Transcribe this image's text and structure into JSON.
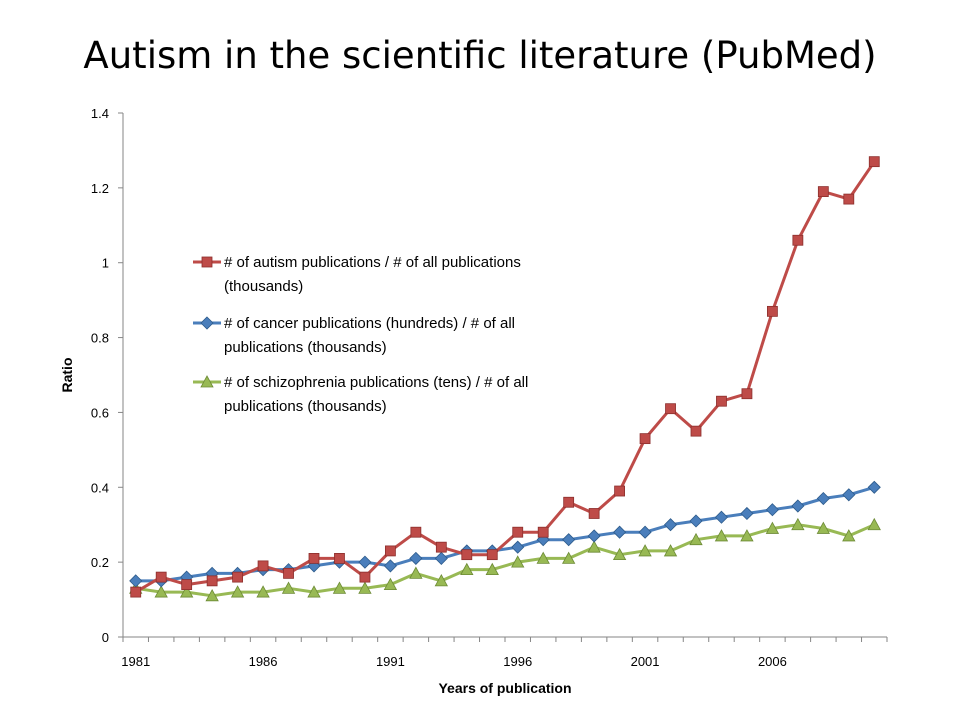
{
  "title": "Autism in the scientific literature (PubMed)",
  "chart_data": {
    "type": "line",
    "title": "Autism in the scientific literature (PubMed)",
    "xlabel": "Years of publication",
    "ylabel": "Ratio",
    "ylim": [
      0,
      1.4
    ],
    "yticks": [
      "0",
      "0.2",
      "0.4",
      "0.6",
      "0.8",
      "1",
      "1.2",
      "1.4"
    ],
    "xticks": [
      "1981",
      "1986",
      "1991",
      "1996",
      "2001",
      "2006"
    ],
    "grid": false,
    "legend_position": "left-middle",
    "x": [
      1981,
      1982,
      1983,
      1984,
      1985,
      1986,
      1987,
      1988,
      1989,
      1990,
      1991,
      1992,
      1993,
      1994,
      1995,
      1996,
      1997,
      1998,
      1999,
      2000,
      2001,
      2002,
      2003,
      2004,
      2005,
      2006,
      2007,
      2008,
      2009,
      2010
    ],
    "series": [
      {
        "name": "# of autism publications / # of all publications (thousands)",
        "legend_lines": [
          "# of autism publications / # of all publications",
          "(thousands)"
        ],
        "color": "#be4b48",
        "marker": "square",
        "values": [
          0.12,
          0.16,
          0.14,
          0.15,
          0.16,
          0.19,
          0.17,
          0.21,
          0.21,
          0.16,
          0.23,
          0.28,
          0.24,
          0.22,
          0.22,
          0.28,
          0.28,
          0.36,
          0.33,
          0.39,
          0.53,
          0.61,
          0.55,
          0.63,
          0.65,
          0.87,
          1.06,
          1.19,
          1.17,
          1.27
        ]
      },
      {
        "name": "# of cancer publications (hundreds) / # of all publications (thousands)",
        "legend_lines": [
          "# of cancer publications (hundreds) / # of all",
          "publications (thousands)"
        ],
        "color": "#4a7ebb",
        "marker": "diamond",
        "values": [
          0.15,
          0.15,
          0.16,
          0.17,
          0.17,
          0.18,
          0.18,
          0.19,
          0.2,
          0.2,
          0.19,
          0.21,
          0.21,
          0.23,
          0.23,
          0.24,
          0.26,
          0.26,
          0.27,
          0.28,
          0.28,
          0.3,
          0.31,
          0.32,
          0.33,
          0.34,
          0.35,
          0.37,
          0.38,
          0.4
        ]
      },
      {
        "name": "# of schizophrenia publications (tens) / # of all publications (thousands)",
        "legend_lines": [
          "# of schizophrenia publications (tens) / # of all",
          "publications (thousands)"
        ],
        "color": "#98b954",
        "marker": "triangle",
        "values": [
          0.13,
          0.12,
          0.12,
          0.11,
          0.12,
          0.12,
          0.13,
          0.12,
          0.13,
          0.13,
          0.14,
          0.17,
          0.15,
          0.18,
          0.18,
          0.2,
          0.21,
          0.21,
          0.24,
          0.22,
          0.23,
          0.23,
          0.26,
          0.27,
          0.27,
          0.29,
          0.3,
          0.29,
          0.27,
          0.3
        ]
      }
    ]
  }
}
